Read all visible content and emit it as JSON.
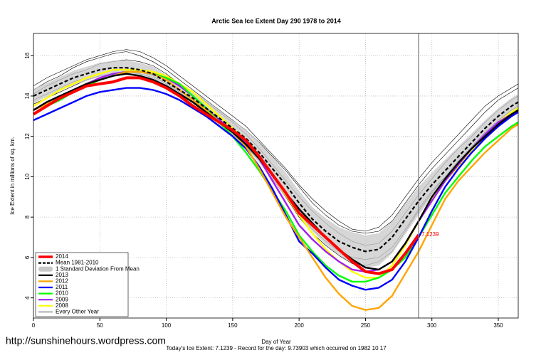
{
  "chart_data": {
    "type": "line",
    "title": "Arctic Sea Ice Extent Day 290 1978 to 2014",
    "x_label": "Day of Year",
    "y_label": "Ice Extent in millions of sq. km.",
    "footer": "Today's Ice Extent: 7.1239  - Record for the day: 9.73903 which occurred on 1982 10 17",
    "watermark": "http://sunshinehours.wordpress.com",
    "annotation": "7.1239",
    "vline": 290,
    "xlim": [
      0,
      365
    ],
    "ylim": [
      3,
      17.1
    ],
    "xticks": [
      0,
      50,
      100,
      150,
      200,
      250,
      300,
      350
    ],
    "yticks": [
      4,
      6,
      8,
      10,
      12,
      14,
      16
    ],
    "grid": true,
    "legend": "bottom-left",
    "x": [
      0,
      10,
      20,
      30,
      40,
      50,
      60,
      70,
      80,
      90,
      100,
      110,
      120,
      130,
      140,
      150,
      160,
      170,
      180,
      190,
      200,
      210,
      220,
      230,
      240,
      250,
      260,
      270,
      280,
      290,
      300,
      310,
      320,
      330,
      340,
      350,
      360,
      365
    ],
    "series": [
      {
        "name": "2014",
        "color": "#ff0000",
        "kind": "thick",
        "values": [
          13.1,
          13.5,
          13.9,
          14.2,
          14.5,
          14.6,
          14.7,
          14.9,
          14.9,
          14.7,
          14.4,
          14.0,
          13.5,
          13.1,
          12.7,
          12.3,
          11.8,
          11.0,
          10.1,
          9.2,
          8.2,
          7.6,
          7.0,
          6.4,
          5.8,
          5.3,
          5.2,
          5.4,
          6.2,
          7.1239,
          null,
          null,
          null,
          null,
          null,
          null,
          null,
          null
        ]
      },
      {
        "name": "Mean 1981-2010",
        "color": "#000000",
        "kind": "dashed",
        "values": [
          14.0,
          14.3,
          14.6,
          14.9,
          15.1,
          15.3,
          15.4,
          15.4,
          15.3,
          15.1,
          14.7,
          14.3,
          13.9,
          13.4,
          12.9,
          12.4,
          11.9,
          11.2,
          10.4,
          9.6,
          8.7,
          7.9,
          7.3,
          6.8,
          6.5,
          6.3,
          6.4,
          7.0,
          7.9,
          8.8,
          9.6,
          10.3,
          11.0,
          11.7,
          12.4,
          13.0,
          13.5,
          13.7
        ]
      },
      {
        "name": "1 Standard Deviation From Mean",
        "color": "#c8c8c8",
        "kind": "band",
        "values": [
          0.35,
          0.35,
          0.35,
          0.35,
          0.35,
          0.35,
          0.35,
          0.35,
          0.35,
          0.35,
          0.35,
          0.35,
          0.35,
          0.4,
          0.4,
          0.4,
          0.45,
          0.5,
          0.55,
          0.6,
          0.6,
          0.6,
          0.65,
          0.7,
          0.75,
          0.8,
          0.8,
          0.8,
          0.75,
          0.7,
          0.6,
          0.55,
          0.5,
          0.45,
          0.4,
          0.4,
          0.4,
          0.4
        ]
      },
      {
        "name": "2013",
        "color": "#000000",
        "kind": "thick",
        "values": [
          13.3,
          13.7,
          14.0,
          14.3,
          14.6,
          14.8,
          15.0,
          15.1,
          15.0,
          14.8,
          14.5,
          14.1,
          13.7,
          13.2,
          12.7,
          12.2,
          11.6,
          10.9,
          10.1,
          9.2,
          8.4,
          7.7,
          7.0,
          6.4,
          5.9,
          5.5,
          5.4,
          5.8,
          6.7,
          7.8,
          9.0,
          9.9,
          10.7,
          11.4,
          12.0,
          12.6,
          13.1,
          13.3
        ]
      },
      {
        "name": "2012",
        "color": "#ffa500",
        "kind": "thick",
        "values": [
          13.3,
          13.6,
          13.9,
          14.3,
          14.6,
          14.8,
          15.0,
          15.2,
          15.2,
          15.1,
          14.8,
          14.3,
          13.8,
          13.3,
          12.7,
          12.2,
          11.5,
          10.4,
          9.2,
          8.0,
          7.0,
          6.0,
          5.0,
          4.2,
          3.6,
          3.4,
          3.5,
          4.1,
          5.2,
          6.3,
          7.6,
          8.9,
          9.8,
          10.5,
          11.2,
          11.8,
          12.4,
          12.6
        ]
      },
      {
        "name": "2011",
        "color": "#0000ff",
        "kind": "thick",
        "values": [
          12.8,
          13.1,
          13.4,
          13.7,
          14.0,
          14.2,
          14.3,
          14.4,
          14.4,
          14.3,
          14.1,
          13.8,
          13.4,
          13.0,
          12.5,
          12.0,
          11.4,
          10.5,
          9.4,
          8.1,
          6.8,
          6.2,
          5.5,
          4.9,
          4.6,
          4.4,
          4.5,
          4.9,
          5.8,
          7.0,
          8.3,
          9.5,
          10.4,
          11.2,
          11.9,
          12.5,
          13.0,
          13.2
        ]
      },
      {
        "name": "2010",
        "color": "#00ff00",
        "kind": "thick",
        "values": [
          13.1,
          13.5,
          13.8,
          14.2,
          14.5,
          14.8,
          15.0,
          15.2,
          15.2,
          15.1,
          14.9,
          14.6,
          14.0,
          13.4,
          12.7,
          12.0,
          11.2,
          10.3,
          9.3,
          8.3,
          7.1,
          6.3,
          5.6,
          5.1,
          4.8,
          4.8,
          5.0,
          5.4,
          6.0,
          7.0,
          8.1,
          9.2,
          10.0,
          10.8,
          11.5,
          12.0,
          12.5,
          12.7
        ]
      },
      {
        "name": "2009",
        "color": "#a020f0",
        "kind": "thick",
        "values": [
          13.3,
          13.7,
          14.0,
          14.3,
          14.6,
          14.9,
          15.1,
          15.2,
          15.2,
          15.1,
          14.9,
          14.5,
          14.0,
          13.4,
          12.8,
          12.3,
          11.7,
          10.9,
          9.8,
          8.7,
          7.6,
          6.9,
          6.3,
          5.8,
          5.4,
          5.3,
          5.4,
          5.8,
          6.7,
          7.8,
          8.8,
          9.8,
          10.6,
          11.4,
          12.1,
          12.7,
          13.1,
          13.2
        ]
      },
      {
        "name": "2008",
        "color": "#ffff00",
        "kind": "thick",
        "values": [
          13.5,
          13.9,
          14.3,
          14.6,
          14.9,
          15.1,
          15.3,
          15.3,
          15.3,
          15.2,
          15.0,
          14.6,
          14.2,
          13.6,
          13.0,
          12.4,
          11.8,
          11.0,
          10.1,
          9.1,
          8.1,
          7.2,
          6.4,
          5.8,
          5.3,
          5.0,
          5.0,
          5.6,
          6.6,
          7.8,
          8.9,
          9.8,
          10.5,
          11.3,
          12.0,
          12.7,
          13.2,
          13.4
        ]
      },
      {
        "name": "Every Other Year",
        "color": "#000000",
        "kind": "thin",
        "lines": [
          [
            14.3,
            14.7,
            15.0,
            15.4,
            15.7,
            15.9,
            16.1,
            16.2,
            16.0,
            15.7,
            15.3,
            14.8,
            14.3,
            13.8,
            13.3,
            12.8,
            12.3,
            11.7,
            11.0,
            10.3,
            9.5,
            8.7,
            8.1,
            7.6,
            7.3,
            7.2,
            7.3,
            7.8,
            8.7,
            9.6,
            10.4,
            11.1,
            11.8,
            12.5,
            13.2,
            13.8,
            14.2,
            14.4
          ],
          [
            13.8,
            14.1,
            14.4,
            14.7,
            14.9,
            15.1,
            15.3,
            15.3,
            15.2,
            15.0,
            14.6,
            14.2,
            13.7,
            13.2,
            12.7,
            12.2,
            11.6,
            10.9,
            10.0,
            9.1,
            8.2,
            7.4,
            6.8,
            6.3,
            6.0,
            5.9,
            6.0,
            6.5,
            7.4,
            8.4,
            9.3,
            10.0,
            10.8,
            11.5,
            12.2,
            12.8,
            13.3,
            13.5
          ],
          [
            14.1,
            14.5,
            14.8,
            15.1,
            15.3,
            15.6,
            15.7,
            15.8,
            15.7,
            15.5,
            15.1,
            14.6,
            14.2,
            13.7,
            13.2,
            12.7,
            12.1,
            11.4,
            10.6,
            9.8,
            9.0,
            8.3,
            7.7,
            7.2,
            6.8,
            6.6,
            6.7,
            7.3,
            8.2,
            9.1,
            9.9,
            10.7,
            11.4,
            12.0,
            12.7,
            13.3,
            13.8,
            14.0
          ],
          [
            13.6,
            13.9,
            14.2,
            14.5,
            14.8,
            15.0,
            15.1,
            15.2,
            15.1,
            14.9,
            14.5,
            14.1,
            13.7,
            13.2,
            12.6,
            12.1,
            11.5,
            10.8,
            9.9,
            9.0,
            8.0,
            7.2,
            6.6,
            6.1,
            5.7,
            5.6,
            5.8,
            6.3,
            7.3,
            8.3,
            9.2,
            10.0,
            10.7,
            11.4,
            12.1,
            12.7,
            13.2,
            13.4
          ],
          [
            14.5,
            14.9,
            15.2,
            15.5,
            15.8,
            16.0,
            16.2,
            16.3,
            16.2,
            15.9,
            15.5,
            15.0,
            14.5,
            14.0,
            13.5,
            13.0,
            12.5,
            11.8,
            11.1,
            10.4,
            9.6,
            8.9,
            8.3,
            7.8,
            7.4,
            7.3,
            7.5,
            8.1,
            9.0,
            9.9,
            10.7,
            11.4,
            12.1,
            12.8,
            13.5,
            14.0,
            14.4,
            14.6
          ]
        ]
      }
    ]
  }
}
